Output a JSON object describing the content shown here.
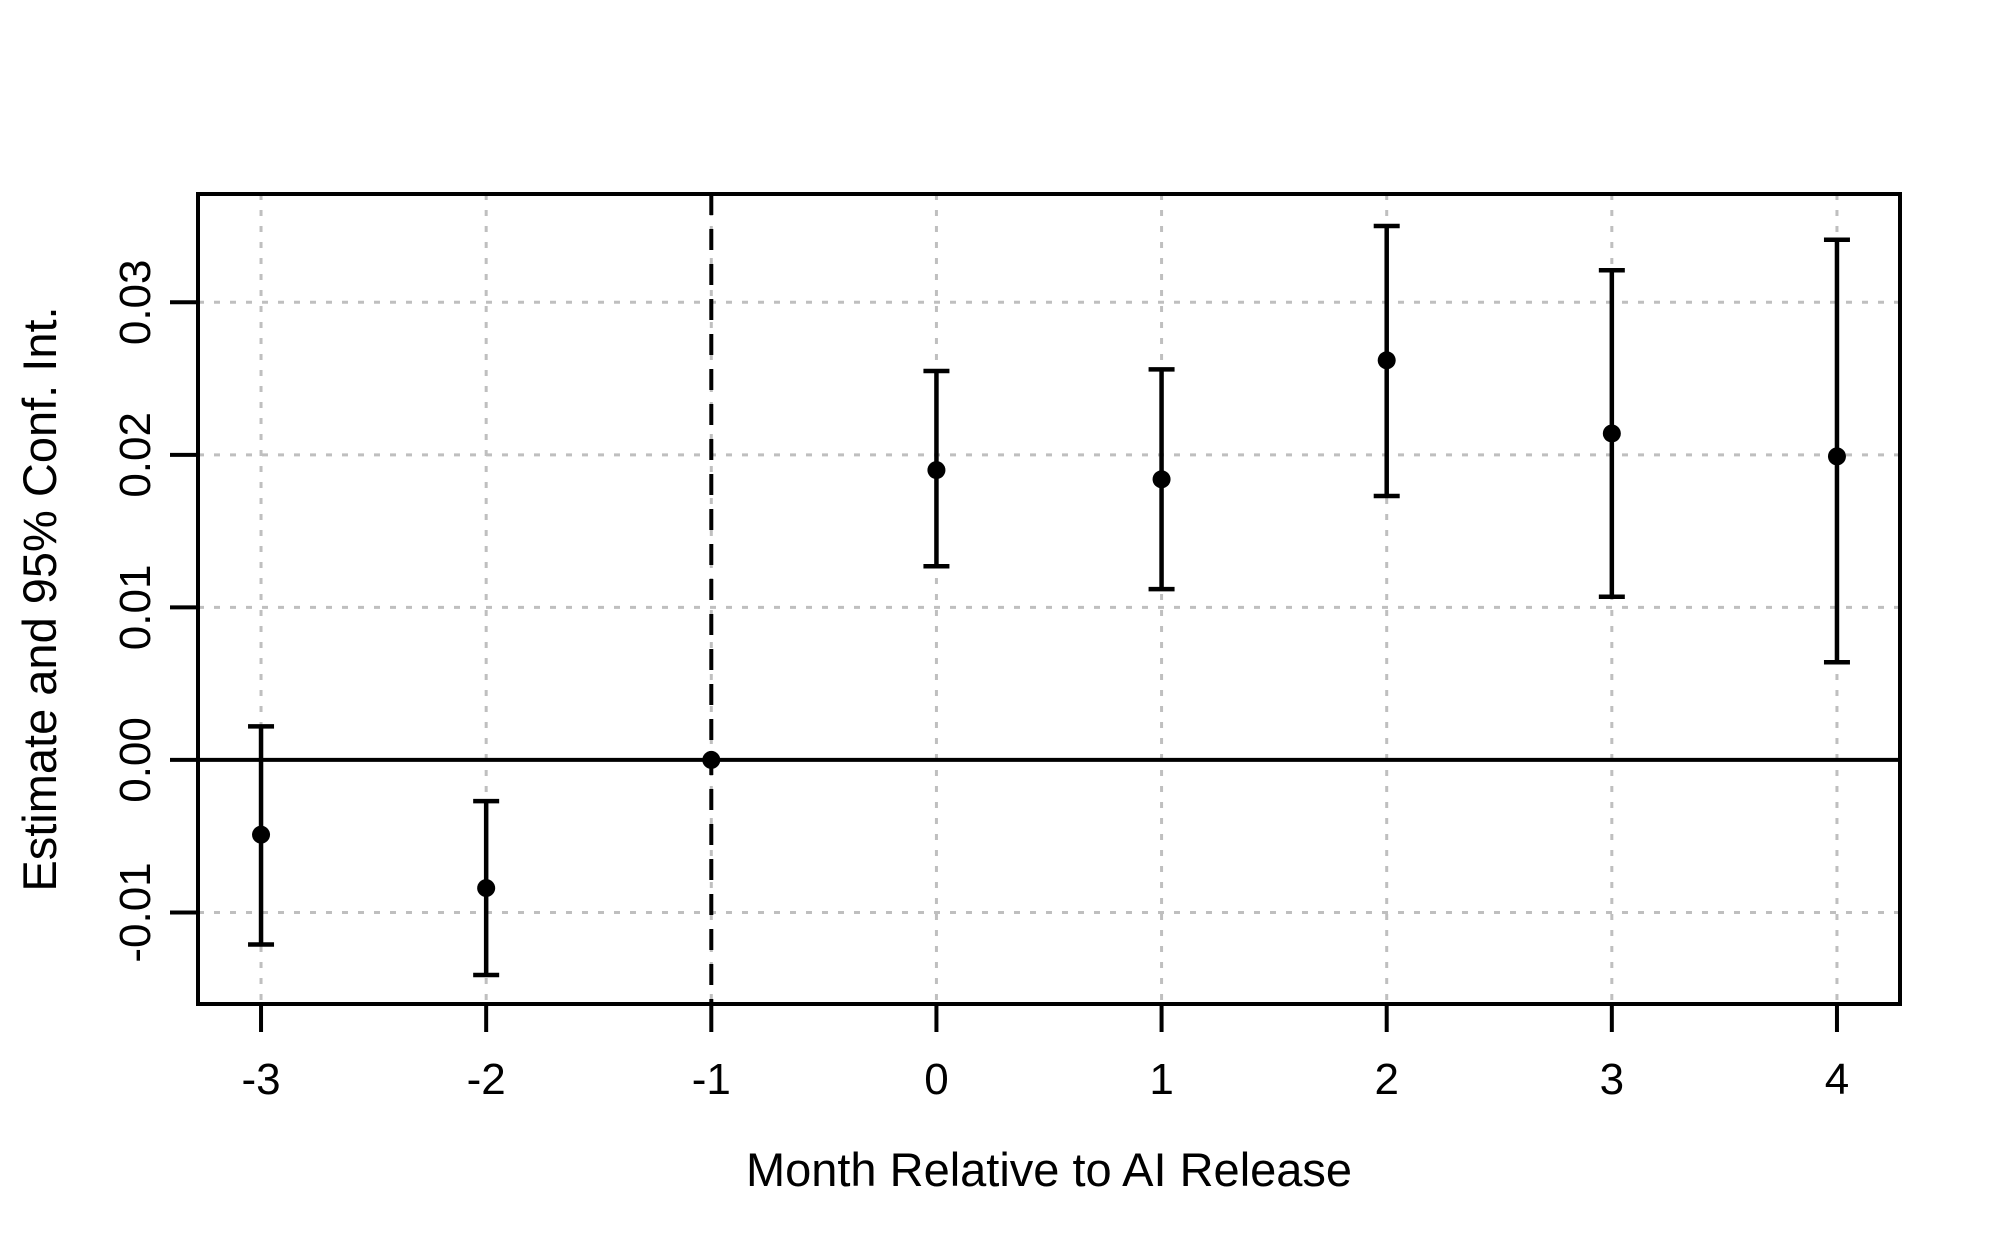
{
  "chart_data": {
    "type": "scatter",
    "subtype": "event-study-point-estimates-with-error-bars",
    "title": "",
    "xlabel": "Month Relative to AI Release",
    "ylabel": "Estimate and 95% Conf. Int.",
    "x_ticks": [
      -3,
      -2,
      -1,
      0,
      1,
      2,
      3,
      4
    ],
    "x_tick_labels": [
      "-3",
      "-2",
      "-1",
      "0",
      "1",
      "2",
      "3",
      "4"
    ],
    "y_ticks": [
      -0.01,
      0.0,
      0.01,
      0.02,
      0.03
    ],
    "y_tick_labels": [
      "-0.01",
      "0.00",
      "0.01",
      "0.02",
      "0.03"
    ],
    "xlim": [
      -3.28,
      4.28
    ],
    "ylim": [
      -0.016,
      0.0371
    ],
    "grid": true,
    "zero_line_y": 0,
    "reference_line_x": -1,
    "reference_line_style": "dashed",
    "points": [
      {
        "x": -3,
        "estimate": -0.0049,
        "ci_low": -0.0121,
        "ci_high": 0.0022
      },
      {
        "x": -2,
        "estimate": -0.0084,
        "ci_low": -0.0141,
        "ci_high": -0.0027
      },
      {
        "x": -1,
        "estimate": 0.0,
        "ci_low": null,
        "ci_high": null
      },
      {
        "x": 0,
        "estimate": 0.019,
        "ci_low": 0.0127,
        "ci_high": 0.0255
      },
      {
        "x": 1,
        "estimate": 0.0184,
        "ci_low": 0.0112,
        "ci_high": 0.0256
      },
      {
        "x": 2,
        "estimate": 0.0262,
        "ci_low": 0.0173,
        "ci_high": 0.035
      },
      {
        "x": 3,
        "estimate": 0.0214,
        "ci_low": 0.0107,
        "ci_high": 0.0321
      },
      {
        "x": 4,
        "estimate": 0.0199,
        "ci_low": 0.0064,
        "ci_high": 0.0341
      }
    ],
    "colors": {
      "point": "#000000",
      "error_bar": "#000000",
      "grid": "#bfbfbf",
      "axis": "#000000",
      "zero_line": "#000000",
      "reference_line": "#000000",
      "background": "#ffffff"
    },
    "legend": null
  }
}
